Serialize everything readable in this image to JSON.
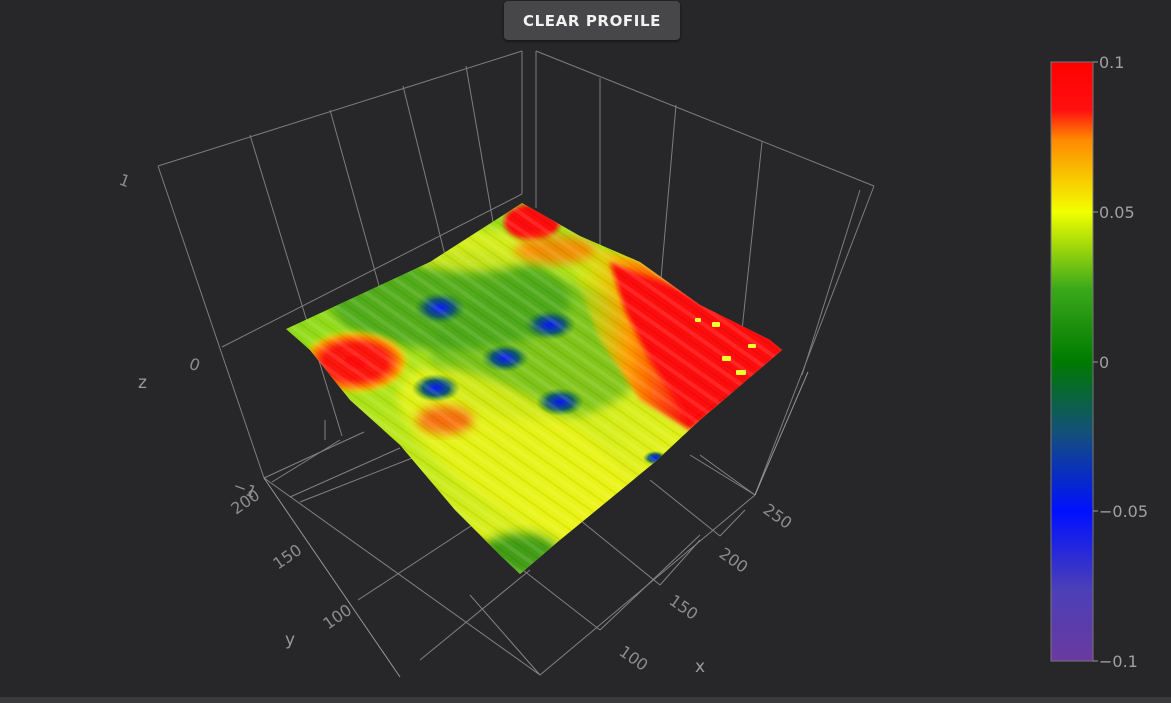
{
  "toolbar": {
    "clear_profile_label": "CLEAR PROFILE"
  },
  "chart_data": {
    "type": "surface3d",
    "title": "",
    "axes": {
      "x": {
        "label": "x",
        "ticks": [
          "100",
          "150",
          "200",
          "250"
        ]
      },
      "y": {
        "label": "y",
        "ticks": [
          "100",
          "150",
          "200"
        ]
      },
      "z": {
        "label": "z",
        "ticks": [
          "−1",
          "0",
          "1"
        ],
        "range": [
          -1,
          1
        ]
      }
    },
    "colorbar": {
      "range": [
        -0.1,
        0.1
      ],
      "ticks": [
        "0.1",
        "0.05",
        "0",
        "−0.05",
        "−0.1"
      ],
      "colorscale": [
        [
          0.0,
          "#6a3aa0"
        ],
        [
          0.12,
          "#4b3fb8"
        ],
        [
          0.25,
          "#0010ff"
        ],
        [
          0.38,
          "#134f7a"
        ],
        [
          0.5,
          "#007a00"
        ],
        [
          0.62,
          "#3aa81a"
        ],
        [
          0.75,
          "#f2ff00"
        ],
        [
          0.87,
          "#ff8a00"
        ],
        [
          0.92,
          "#ff1010"
        ],
        [
          1.0,
          "#ff0000"
        ]
      ]
    },
    "surface_features": [
      {
        "region": "right edge band",
        "level": 0.09,
        "color": "red"
      },
      {
        "region": "back corner",
        "level": 0.09,
        "color": "red"
      },
      {
        "region": "left blob",
        "level": 0.09,
        "color": "red"
      },
      {
        "region": "pits (5)",
        "level": -0.05,
        "color": "blue"
      },
      {
        "region": "base plane",
        "level": 0.03,
        "color": "green-yellow"
      }
    ]
  }
}
